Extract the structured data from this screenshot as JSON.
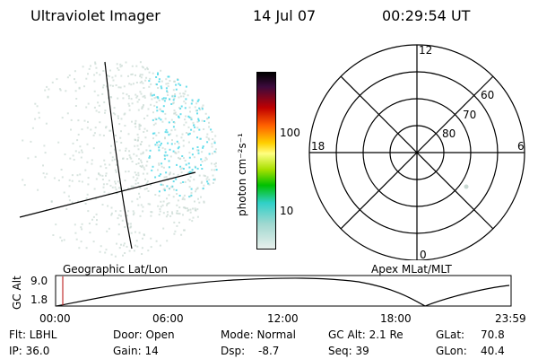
{
  "header": {
    "instrument": "Ultraviolet Imager",
    "date": "14 Jul 07",
    "time": "00:29:54 UT"
  },
  "colorbar": {
    "label": "photon cm⁻²s⁻¹",
    "ticks": [
      "100",
      "10"
    ]
  },
  "polar_plot": {
    "mlt_labels": {
      "top": "12",
      "left": "18",
      "right": "6",
      "bottom": "0"
    },
    "lat_labels": [
      "60",
      "70",
      "80"
    ]
  },
  "altitude_panel": {
    "left_label": "Geographic Lat/Lon",
    "right_label": "Apex MLat/MLT",
    "axis_label": "GC Alt",
    "y_ticks": [
      "9.0",
      "1.8"
    ],
    "x_ticks": [
      "00:00",
      "06:00",
      "12:00",
      "18:00",
      "23:59"
    ]
  },
  "info": {
    "row1": {
      "flt": "Flt: LBHL",
      "door": "Door: Open",
      "mode": "Mode: Normal",
      "gcalt": "GC Alt: 2.1 Re",
      "glat_label": "GLat:",
      "glat_value": "70.8"
    },
    "row2": {
      "ip": "IP: 36.0",
      "gain": "Gain: 14",
      "dsp_label": "Dsp:",
      "dsp_value": "-8.7",
      "seq": "Seq: 39",
      "glon_label": "GLon:",
      "glon_value": "40.4"
    }
  },
  "colors": {
    "grid_lines": "#000000",
    "emission_faint": "#c8d8d2",
    "emission_bright": "#4fd8e8",
    "time_marker": "#c03030"
  }
}
